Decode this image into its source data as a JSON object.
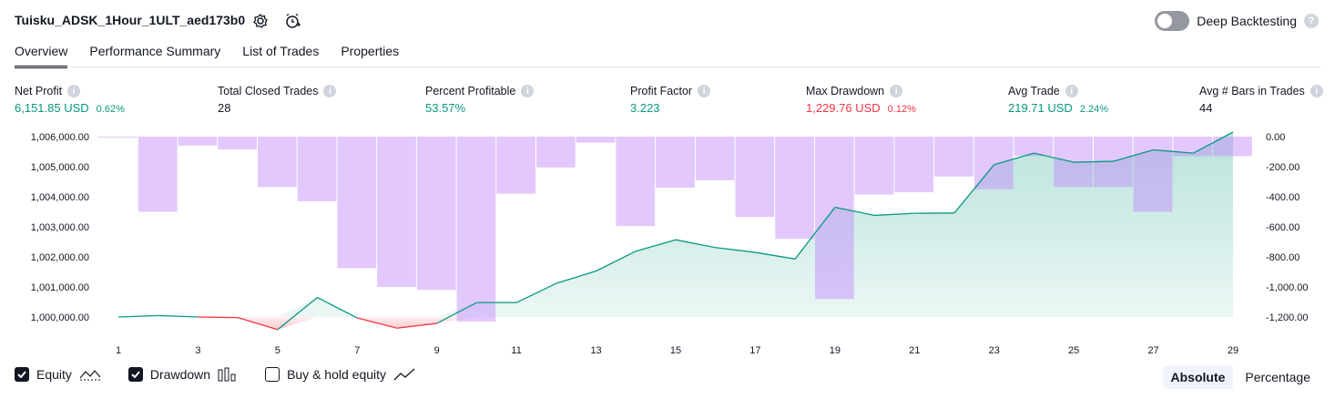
{
  "header": {
    "title": "Tuisku_ADSK_1Hour_1ULT_aed173b0",
    "deep_backtesting_label": "Deep Backtesting",
    "deep_backtesting_on": false
  },
  "tabs": [
    {
      "label": "Overview",
      "active": true
    },
    {
      "label": "Performance Summary",
      "active": false
    },
    {
      "label": "List of Trades",
      "active": false
    },
    {
      "label": "Properties",
      "active": false
    }
  ],
  "metrics": [
    {
      "label": "Net Profit",
      "value": "6,151.85 USD",
      "pct": "0.62%",
      "color": "green"
    },
    {
      "label": "Total Closed Trades",
      "value": "28",
      "pct": "",
      "color": "dark"
    },
    {
      "label": "Percent Profitable",
      "value": "53.57%",
      "pct": "",
      "color": "green"
    },
    {
      "label": "Profit Factor",
      "value": "3.223",
      "pct": "",
      "color": "green"
    },
    {
      "label": "Max Drawdown",
      "value": "1,229.76 USD",
      "pct": "0.12%",
      "color": "red"
    },
    {
      "label": "Avg Trade",
      "value": "219.71 USD",
      "pct": "2.24%",
      "color": "green"
    },
    {
      "label": "Avg # Bars in Trades",
      "value": "44",
      "pct": "",
      "color": "dark"
    }
  ],
  "legend": [
    {
      "label": "Equity",
      "checked": true,
      "icon": "equity-line-icon"
    },
    {
      "label": "Drawdown",
      "checked": true,
      "icon": "drawdown-bars-icon"
    },
    {
      "label": "Buy & hold equity",
      "checked": false,
      "icon": "buy-hold-line-icon"
    }
  ],
  "mode": {
    "absolute_label": "Absolute",
    "percentage_label": "Percentage",
    "active": "Absolute"
  },
  "colors": {
    "equity_up": "#089981",
    "equity_down": "#f23645",
    "drawdown": "#c084fc",
    "text": "#131722"
  },
  "chart_data": {
    "type": "line",
    "x": [
      1,
      2,
      3,
      4,
      5,
      6,
      7,
      8,
      9,
      10,
      11,
      12,
      13,
      14,
      15,
      16,
      17,
      18,
      19,
      20,
      21,
      22,
      23,
      24,
      25,
      26,
      27,
      28,
      29
    ],
    "x_ticks": [
      "1",
      "3",
      "5",
      "7",
      "9",
      "11",
      "13",
      "15",
      "17",
      "19",
      "21",
      "23",
      "25",
      "27",
      "29"
    ],
    "series": [
      {
        "name": "Equity",
        "axis": "left",
        "values": [
          1000000,
          1000050,
          1000000,
          999980,
          999580,
          1000650,
          999970,
          999630,
          999790,
          1000480,
          1000480,
          1001120,
          1001530,
          1002190,
          1002570,
          1002310,
          1002150,
          1001930,
          1003650,
          1003380,
          1003450,
          1003460,
          1005070,
          1005450,
          1005150,
          1005180,
          1005560,
          1005450,
          1006151.85
        ]
      },
      {
        "name": "Drawdown",
        "axis": "right",
        "kind": "bar",
        "values": [
          -5,
          -500,
          -60,
          -85,
          -335,
          -430,
          -875,
          -1000,
          -1020,
          -1229.76,
          -380,
          -205,
          -40,
          -595,
          -340,
          -290,
          -535,
          -680,
          -1080,
          -385,
          -370,
          -265,
          -350,
          -130,
          -335,
          -335,
          -500,
          -130,
          -130
        ]
      }
    ],
    "ylim_left": [
      1000000,
      1006000
    ],
    "yticks_left": [
      "1,006,000.00",
      "1,005,000.00",
      "1,004,000.00",
      "1,003,000.00",
      "1,002,000.00",
      "1,001,000.00",
      "1,000,000.00"
    ],
    "ylim_right": [
      -1200,
      0
    ],
    "yticks_right": [
      "0.00",
      "-200.00",
      "-400.00",
      "-600.00",
      "-800.00",
      "-1,000.00",
      "-1,200.00"
    ],
    "grid": false
  }
}
